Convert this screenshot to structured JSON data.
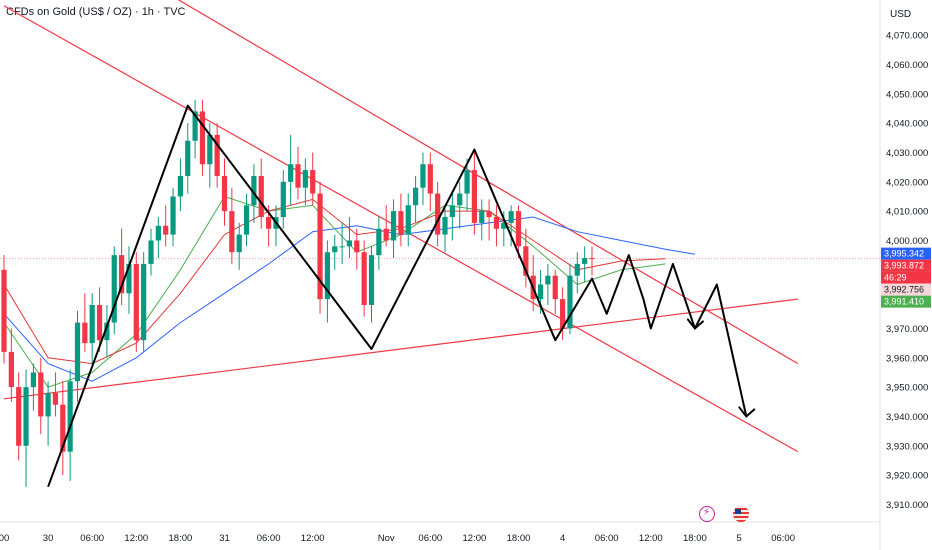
{
  "header": {
    "title": "CFDs on Gold (US$ / OZ) · 1h · TVC",
    "currency": "USD"
  },
  "events": {
    "bolt_icon": "lightning-event-icon",
    "flag_icon": "us-flag-event-icon"
  },
  "colors": {
    "bull": "#089981",
    "bear": "#f23645",
    "trendline": "#f23645",
    "ma_blue": "#2962ff",
    "ma_green": "#4caf50",
    "ma_red": "#e53935",
    "pattern": "#000000"
  },
  "chart_data": {
    "type": "candlestick",
    "title": "CFDs on Gold (US$ / OZ) · 1h · TVC",
    "y_axis": {
      "unit": "USD",
      "range": [
        3904,
        4082
      ],
      "ticks": [
        3910,
        3920,
        3930,
        3940,
        3950,
        3960,
        3970,
        3980,
        3990,
        4000,
        4010,
        4020,
        4030,
        4040,
        4050,
        4060,
        4070
      ],
      "tick_labels": [
        "3,910.000",
        "3,920.000",
        "3,930.000",
        "3,940.000",
        "3,950.000",
        "3,960.000",
        "3,970.000",
        "3,980.000",
        "3,990.000",
        "4,000.000",
        "4,010.000",
        "4,020.000",
        "4,030.000",
        "4,040.000",
        "4,050.000",
        "4,060.000",
        "4,070.000"
      ],
      "side": "right"
    },
    "x_axis": {
      "labels": [
        "00",
        "30",
        "06:00",
        "12:00",
        "18:00",
        "31",
        "06:00",
        "12:00",
        "Nov",
        "06:00",
        "12:00",
        "18:00",
        "4",
        "06:00",
        "12:00",
        "18:00",
        "5",
        "06:00"
      ],
      "label_bars": [
        0,
        6,
        12,
        18,
        24,
        30,
        36,
        42,
        52,
        58,
        64,
        70,
        76,
        82,
        88,
        94,
        100,
        106
      ]
    },
    "price_tags": [
      {
        "label": "3,995.342",
        "value": 3995.342,
        "color": "#2962ff",
        "text_color": "#ffffff"
      },
      {
        "label": "3,993.872",
        "value": 3993.872,
        "color": "#f23645",
        "text_color": "#ffffff"
      },
      {
        "label": "46:29",
        "value": 3990.4,
        "color": "#f23645",
        "text_color": "#ffffff"
      },
      {
        "label": "3,992.756",
        "value": 3988.6,
        "color": "#f8d7da",
        "text_color": "#131722"
      },
      {
        "label": "3,991.410",
        "value": 3984.0,
        "color": "#4caf50",
        "text_color": "#ffffff"
      }
    ],
    "current_price": 3993.872,
    "candles": [
      [
        3990,
        3995,
        3958,
        3962
      ],
      [
        3962,
        3970,
        3945,
        3950
      ],
      [
        3950,
        3955,
        3925,
        3930
      ],
      [
        3930,
        3956,
        3916,
        3950
      ],
      [
        3950,
        3958,
        3942,
        3955
      ],
      [
        3955,
        3960,
        3934,
        3940
      ],
      [
        3940,
        3952,
        3930,
        3948
      ],
      [
        3948,
        3955,
        3940,
        3944
      ],
      [
        3944,
        3952,
        3920,
        3928
      ],
      [
        3928,
        3956,
        3918,
        3952
      ],
      [
        3952,
        3976,
        3945,
        3972
      ],
      [
        3972,
        3982,
        3962,
        3965
      ],
      [
        3965,
        3982,
        3958,
        3978
      ],
      [
        3978,
        3984,
        3962,
        3966
      ],
      [
        3966,
        3978,
        3960,
        3972
      ],
      [
        3972,
        3998,
        3968,
        3995
      ],
      [
        3995,
        4004,
        3978,
        3982
      ],
      [
        3982,
        3998,
        3975,
        3992
      ],
      [
        3992,
        3996,
        3962,
        3966
      ],
      [
        3966,
        3996,
        3962,
        3992
      ],
      [
        3992,
        4004,
        3988,
        4000
      ],
      [
        4000,
        4008,
        3994,
        4005
      ],
      [
        4005,
        4012,
        3998,
        4002
      ],
      [
        4002,
        4018,
        3998,
        4015
      ],
      [
        4015,
        4028,
        4010,
        4022
      ],
      [
        4022,
        4040,
        4016,
        4034
      ],
      [
        4034,
        4048,
        4028,
        4044
      ],
      [
        4044,
        4048,
        4022,
        4026
      ],
      [
        4026,
        4040,
        4018,
        4036
      ],
      [
        4036,
        4040,
        4018,
        4022
      ],
      [
        4022,
        4028,
        4005,
        4010
      ],
      [
        4010,
        4018,
        3992,
        3996
      ],
      [
        3996,
        4006,
        3990,
        4002
      ],
      [
        4002,
        4016,
        3998,
        4012
      ],
      [
        4012,
        4026,
        4006,
        4022
      ],
      [
        4022,
        4028,
        4004,
        4008
      ],
      [
        4008,
        4012,
        3998,
        4004
      ],
      [
        4004,
        4012,
        3998,
        4008
      ],
      [
        4008,
        4024,
        4004,
        4020
      ],
      [
        4020,
        4036,
        4012,
        4026
      ],
      [
        4026,
        4032,
        4014,
        4018
      ],
      [
        4018,
        4028,
        4012,
        4024
      ],
      [
        4024,
        4030,
        4012,
        4016
      ],
      [
        4016,
        4020,
        3975,
        3980
      ],
      [
        3980,
        4000,
        3972,
        3996
      ],
      [
        3996,
        4002,
        3990,
        3998
      ],
      [
        3998,
        4006,
        3992,
        3998
      ],
      [
        3998,
        4008,
        3994,
        4000
      ],
      [
        4000,
        4004,
        3990,
        3996
      ],
      [
        3996,
        4000,
        3974,
        3978
      ],
      [
        3978,
        3998,
        3972,
        3995
      ],
      [
        3995,
        4008,
        3990,
        4004
      ],
      [
        4004,
        4012,
        3998,
        4000
      ],
      [
        4000,
        4014,
        3994,
        4010
      ],
      [
        4010,
        4016,
        3998,
        4002
      ],
      [
        4002,
        4016,
        3998,
        4012
      ],
      [
        4012,
        4022,
        4006,
        4018
      ],
      [
        4018,
        4030,
        4012,
        4026
      ],
      [
        4026,
        4030,
        4010,
        4016
      ],
      [
        4016,
        4020,
        3998,
        4002
      ],
      [
        4002,
        4012,
        3996,
        4008
      ],
      [
        4008,
        4016,
        4000,
        4012
      ],
      [
        4012,
        4020,
        4004,
        4016
      ],
      [
        4016,
        4028,
        4010,
        4024
      ],
      [
        4024,
        4030,
        4002,
        4006
      ],
      [
        4006,
        4014,
        4000,
        4010
      ],
      [
        4010,
        4014,
        4000,
        4008
      ],
      [
        4008,
        4012,
        3998,
        4004
      ],
      [
        4004,
        4010,
        3998,
        4006
      ],
      [
        4006,
        4012,
        3998,
        4010
      ],
      [
        4010,
        4012,
        3994,
        3998
      ],
      [
        3998,
        4004,
        3984,
        3988
      ],
      [
        3988,
        3995,
        3976,
        3980
      ],
      [
        3980,
        3990,
        3975,
        3985
      ],
      [
        3985,
        3992,
        3978,
        3988
      ],
      [
        3988,
        3990,
        3975,
        3980
      ],
      [
        3980,
        3984,
        3966,
        3970
      ],
      [
        3970,
        3992,
        3968,
        3988
      ],
      [
        3988,
        3996,
        3982,
        3992
      ],
      [
        3992,
        3998,
        3986,
        3994
      ],
      [
        3994,
        3998,
        3988,
        3993.9
      ]
    ],
    "moving_averages": [
      {
        "color": "#2962ff",
        "values": [
          [
            0,
            3975
          ],
          [
            6,
            3958
          ],
          [
            12,
            3952
          ],
          [
            18,
            3960
          ],
          [
            24,
            3972
          ],
          [
            30,
            3982
          ],
          [
            36,
            3992
          ],
          [
            42,
            4003
          ],
          [
            48,
            4005
          ],
          [
            54,
            4002
          ],
          [
            60,
            4004
          ],
          [
            66,
            4006
          ],
          [
            72,
            4008
          ],
          [
            78,
            4003
          ],
          [
            84,
            4000
          ],
          [
            90,
            3997
          ],
          [
            94,
            3995.3
          ]
        ]
      },
      {
        "color": "#4caf50",
        "values": [
          [
            0,
            3972
          ],
          [
            6,
            3950
          ],
          [
            12,
            3955
          ],
          [
            18,
            3968
          ],
          [
            24,
            3990
          ],
          [
            30,
            4015
          ],
          [
            36,
            4010
          ],
          [
            42,
            4012
          ],
          [
            48,
            3996
          ],
          [
            54,
            4002
          ],
          [
            60,
            4012
          ],
          [
            66,
            4010
          ],
          [
            72,
            3998
          ],
          [
            78,
            3985
          ],
          [
            84,
            3990
          ],
          [
            90,
            3992
          ]
        ]
      },
      {
        "color": "#e53935",
        "values": [
          [
            0,
            3985
          ],
          [
            6,
            3960
          ],
          [
            12,
            3958
          ],
          [
            18,
            3965
          ],
          [
            24,
            3982
          ],
          [
            30,
            4002
          ],
          [
            36,
            4010
          ],
          [
            42,
            4014
          ],
          [
            48,
            4002
          ],
          [
            54,
            4004
          ],
          [
            60,
            4010
          ],
          [
            66,
            4010
          ],
          [
            72,
            4000
          ],
          [
            78,
            3990
          ],
          [
            84,
            3993
          ],
          [
            90,
            3993.8
          ]
        ]
      }
    ],
    "trendlines": [
      {
        "from": [
          0,
          4117
        ],
        "to": [
          108,
          3958
        ]
      },
      {
        "from": [
          0,
          4080
        ],
        "to": [
          108,
          3928
        ]
      },
      {
        "from": [
          0,
          3946
        ],
        "to": [
          108,
          3980
        ]
      }
    ],
    "pattern_zigzag": [
      [
        6,
        3916
      ],
      [
        25,
        4046
      ],
      [
        50,
        3963
      ],
      [
        64,
        4031
      ],
      [
        75,
        3966
      ],
      [
        80,
        3987
      ],
      [
        82,
        3975
      ],
      [
        85,
        3995
      ],
      [
        87,
        3980
      ],
      [
        88,
        3970
      ],
      [
        91,
        3992
      ],
      [
        94,
        3970
      ],
      [
        97,
        3985
      ],
      [
        101,
        3940
      ]
    ],
    "arrowheads": [
      [
        94,
        3970
      ],
      [
        101,
        3940
      ]
    ]
  }
}
